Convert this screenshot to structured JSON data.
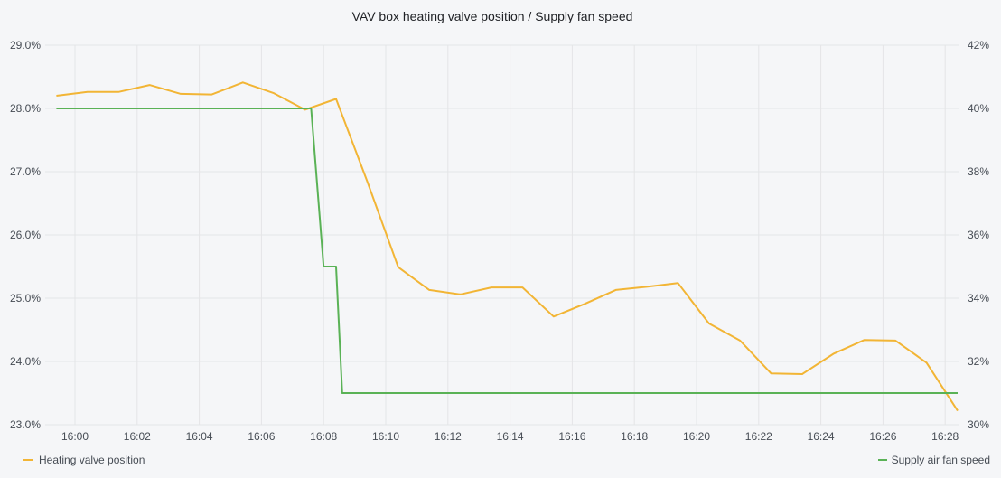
{
  "chart_data": {
    "type": "line",
    "title": "VAV box heating valve position / Supply fan speed",
    "x_ticks": [
      "16:00",
      "16:02",
      "16:04",
      "16:06",
      "16:08",
      "16:10",
      "16:12",
      "16:14",
      "16:16",
      "16:18",
      "16:20",
      "16:22",
      "16:24",
      "16:26",
      "16:28"
    ],
    "left_axis": {
      "ylim": [
        23.0,
        29.0
      ],
      "ticks": [
        {
          "value": 29,
          "label": "29.0%"
        },
        {
          "value": 28,
          "label": "28.0%"
        },
        {
          "value": 27,
          "label": "27.0%"
        },
        {
          "value": 26,
          "label": "26.0%"
        },
        {
          "value": 25,
          "label": "25.0%"
        },
        {
          "value": 24,
          "label": "24.0%"
        },
        {
          "value": 23,
          "label": "23.0%"
        }
      ]
    },
    "right_axis": {
      "ylim": [
        30,
        42
      ],
      "ticks": [
        {
          "value": 42,
          "label": "42%"
        },
        {
          "value": 40,
          "label": "40%"
        },
        {
          "value": 38,
          "label": "38%"
        },
        {
          "value": 36,
          "label": "36%"
        },
        {
          "value": 34,
          "label": "34%"
        },
        {
          "value": 32,
          "label": "32%"
        },
        {
          "value": 30,
          "label": "30%"
        }
      ]
    },
    "grid": true,
    "legend_placement": "bottom",
    "series": [
      {
        "name": "Heating valve position",
        "axis": "left",
        "color": "#f2b535",
        "points": [
          [
            "15:59:24",
            28.2
          ],
          [
            "16:00:24",
            28.26
          ],
          [
            "16:01:24",
            28.26
          ],
          [
            "16:02:24",
            28.37
          ],
          [
            "16:03:24",
            28.23
          ],
          [
            "16:04:24",
            28.22
          ],
          [
            "16:05:24",
            28.41
          ],
          [
            "16:06:24",
            28.24
          ],
          [
            "16:07:24",
            27.98
          ],
          [
            "16:08:24",
            28.15
          ],
          [
            "16:09:24",
            26.85
          ],
          [
            "16:10:24",
            25.49
          ],
          [
            "16:11:24",
            25.13
          ],
          [
            "16:12:24",
            25.06
          ],
          [
            "16:13:24",
            25.17
          ],
          [
            "16:14:24",
            25.17
          ],
          [
            "16:15:24",
            24.71
          ],
          [
            "16:16:24",
            24.91
          ],
          [
            "16:17:24",
            25.13
          ],
          [
            "16:18:24",
            25.18
          ],
          [
            "16:19:24",
            25.24
          ],
          [
            "16:20:24",
            24.6
          ],
          [
            "16:21:24",
            24.33
          ],
          [
            "16:22:24",
            23.81
          ],
          [
            "16:23:24",
            23.8
          ],
          [
            "16:24:24",
            24.12
          ],
          [
            "16:25:24",
            24.34
          ],
          [
            "16:26:24",
            24.33
          ],
          [
            "16:27:24",
            23.98
          ],
          [
            "16:28:24",
            23.22
          ]
        ]
      },
      {
        "name": "Supply air fan speed",
        "axis": "right",
        "color": "#5ab256",
        "points": [
          [
            "15:59:24",
            40
          ],
          [
            "16:07:24",
            40
          ],
          [
            "16:07:36",
            40
          ],
          [
            "16:08:00",
            35
          ],
          [
            "16:08:24",
            35
          ],
          [
            "16:08:36",
            31
          ],
          [
            "16:28:24",
            31
          ]
        ]
      }
    ]
  }
}
